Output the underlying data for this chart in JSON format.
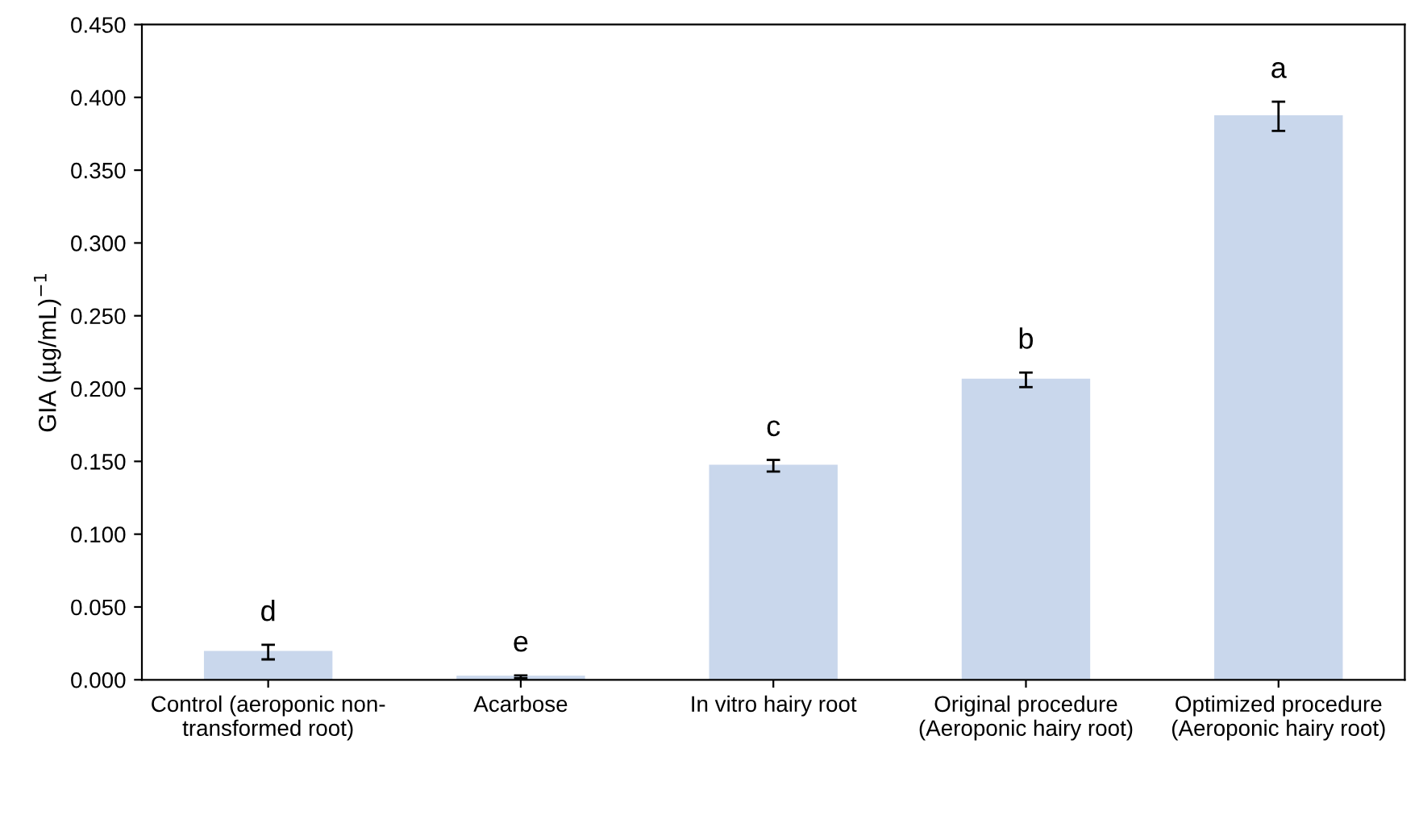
{
  "chart_data": {
    "type": "bar",
    "ylabel": "GIA (µg/mL)$^{−1}$",
    "categories": [
      "Control (aeroponic non-\ntransformed root)",
      "Acarbose",
      "In vitro hairy root",
      "Original procedure\n(Aeroponic hairy root)",
      "Optimized procedure\n(Aeroponic hairy root)"
    ],
    "values": [
      0.019,
      0.002,
      0.147,
      0.206,
      0.387
    ],
    "errors": [
      0.005,
      0.001,
      0.004,
      0.005,
      0.01
    ],
    "color": "#c9d7ec",
    "ylim": [
      0,
      0.45
    ],
    "yticks": [
      {
        "value": 0,
        "label": "0.000"
      },
      {
        "value": 0.05,
        "label": "0.050"
      },
      {
        "value": 0.1,
        "label": "0.100"
      },
      {
        "value": 0.15,
        "label": "0.150"
      },
      {
        "value": 0.2,
        "label": "0.200"
      },
      {
        "value": 0.25,
        "label": "0.250"
      },
      {
        "value": 0.3,
        "label": "0.300"
      },
      {
        "value": 0.35,
        "label": "0.350"
      },
      {
        "value": 0.4,
        "label": "0.400"
      },
      {
        "value": 0.45,
        "label": "0.450"
      }
    ],
    "annotations": [
      {
        "text": "d",
        "x": "Control (aeroponic non-\ntransformed root)",
        "y": 0.024
      },
      {
        "text": "e",
        "x": "Acarbose",
        "y": 0.003
      },
      {
        "text": "c",
        "x": "In vitro hairy root",
        "y": 0.151
      },
      {
        "text": "b",
        "x": "Original procedure\n(Aeroponic hairy root)",
        "y": 0.211
      },
      {
        "text": "a",
        "x": "Optimized procedure\n(Aeroponic hairy root)",
        "y": 0.397
      }
    ],
    "grid": false
  }
}
